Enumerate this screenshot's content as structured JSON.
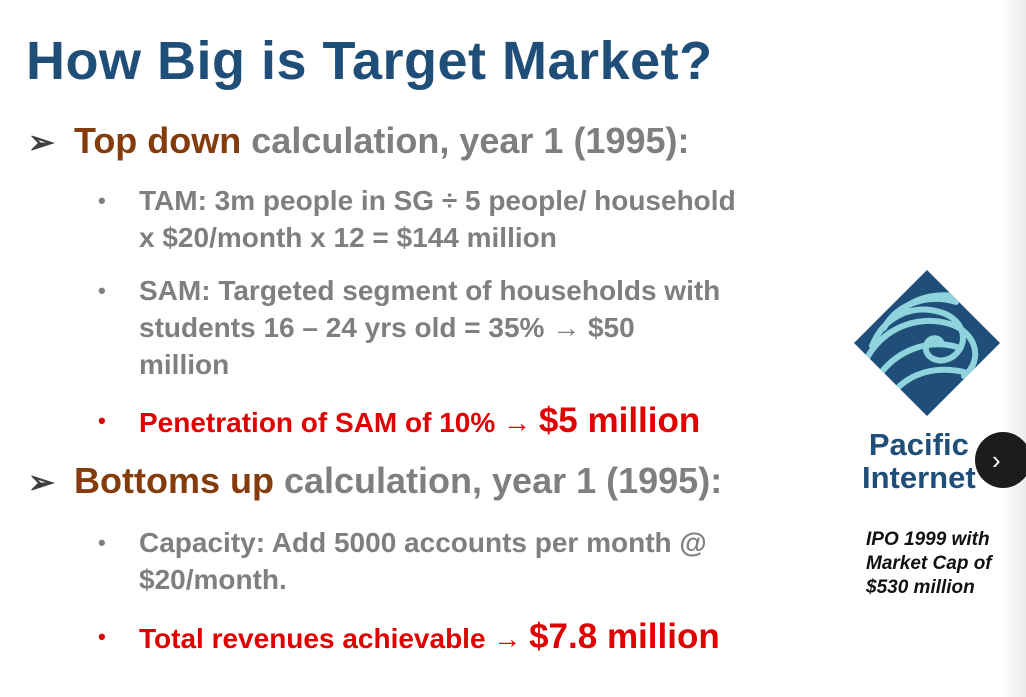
{
  "title": "How Big is Target Market?",
  "top_down": {
    "bullet_symbol": "➢",
    "highlight": "Top down",
    "rest": " calculation, year 1 (1995):",
    "items": [
      {
        "bullet": "•",
        "line1": "TAM:  3m people in SG ÷ 5 people/ household",
        "line2": "x $20/month x 12 =  $144 million"
      },
      {
        "bullet": "•",
        "line1": "SAM: Targeted segment of households with",
        "line2": "students 16 – 24 yrs old =  35% → $50",
        "line3": "million"
      }
    ],
    "penetration": {
      "bullet": "•",
      "text": "Penetration of SAM of 10% → ",
      "amount": "$5 million"
    }
  },
  "bottoms_up": {
    "bullet_symbol": "➢",
    "highlight": "Bottoms up",
    "rest": " calculation, year 1 (1995):",
    "capacity": {
      "bullet": "•",
      "line1": "Capacity:  Add 5000 accounts per month @",
      "line2": "$20/month."
    },
    "revenues": {
      "bullet": "•",
      "text": "Total revenues achievable → ",
      "amount": "$7.8 million"
    }
  },
  "logo": {
    "line1": "Pacific",
    "line2": "Internet",
    "icon": "pacific-internet-wave-logo"
  },
  "caption": {
    "line1": "IPO 1999 with",
    "line2": "Market Cap of",
    "line3": "$530 million"
  },
  "next_button": {
    "label": "›",
    "icon": "chevron-right-icon"
  },
  "colors": {
    "title": "#1f4e79",
    "body": "#7f7f7f",
    "highlight": "#843c0c",
    "emphasis": "#e00000",
    "logo": "#1f4e79"
  }
}
